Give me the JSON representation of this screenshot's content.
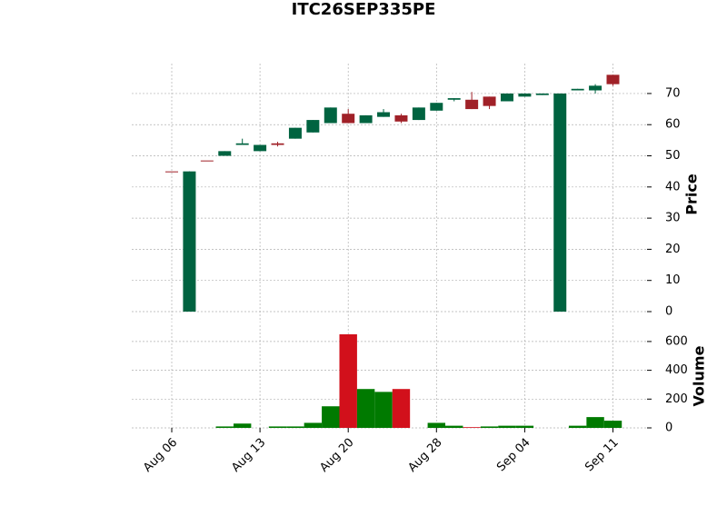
{
  "chart_data": {
    "type": "candlestick",
    "title": "ITC26SEP335PE",
    "categories": [
      "Aug 06",
      null,
      null,
      null,
      null,
      "Aug 13",
      null,
      null,
      null,
      null,
      "Aug 20",
      null,
      null,
      null,
      null,
      "Aug 28",
      null,
      null,
      null,
      null,
      "Sep 04",
      null,
      null,
      null,
      null,
      "Sep 11"
    ],
    "open": [
      45,
      0,
      48.5,
      50,
      53.5,
      51.5,
      54,
      55.5,
      57.5,
      60.5,
      63.5,
      60.5,
      62.5,
      63,
      61.5,
      64.5,
      68,
      68,
      69,
      67.5,
      69,
      69.5,
      0,
      71,
      71,
      76
    ],
    "high": [
      45,
      45,
      48.5,
      51.5,
      55.5,
      53.5,
      54.5,
      59,
      61.5,
      65.5,
      65,
      63,
      65,
      63.5,
      65.5,
      67,
      68.5,
      70.5,
      69,
      70,
      70,
      70,
      70,
      71.5,
      73,
      76
    ],
    "low": [
      45,
      0,
      48.5,
      50,
      53.5,
      51.5,
      53,
      55.5,
      57.5,
      60.5,
      60.5,
      60.5,
      62.5,
      60.5,
      61.5,
      64.5,
      67.5,
      65,
      65,
      67.5,
      69,
      69.5,
      0,
      71,
      70,
      72.5
    ],
    "close": [
      45,
      45,
      48.5,
      51.5,
      54,
      53.5,
      53.5,
      59,
      61.5,
      65.5,
      60.5,
      63,
      64,
      61,
      65.5,
      67,
      68.5,
      65,
      66,
      70,
      70,
      70,
      70,
      71.5,
      72.5,
      73
    ],
    "volume": [
      0,
      0,
      0,
      10,
      30,
      0,
      10,
      10,
      35,
      150,
      650,
      270,
      250,
      270,
      0,
      35,
      15,
      5,
      10,
      15,
      15,
      0,
      0,
      15,
      75,
      50
    ],
    "ylabel": "Price",
    "volume_ylabel": "Volume",
    "ylim": [
      -3.5,
      79.6
    ],
    "yticks": [
      0,
      10,
      20,
      30,
      40,
      50,
      60,
      70
    ],
    "volume_ylim": [
      0,
      713
    ],
    "volume_yticks": [
      0,
      200,
      400,
      600
    ],
    "up_color": "#006340",
    "down_color": "#a02128",
    "volume_up_color": "#007a00",
    "volume_down_color": "#d2101b",
    "grid": true
  }
}
